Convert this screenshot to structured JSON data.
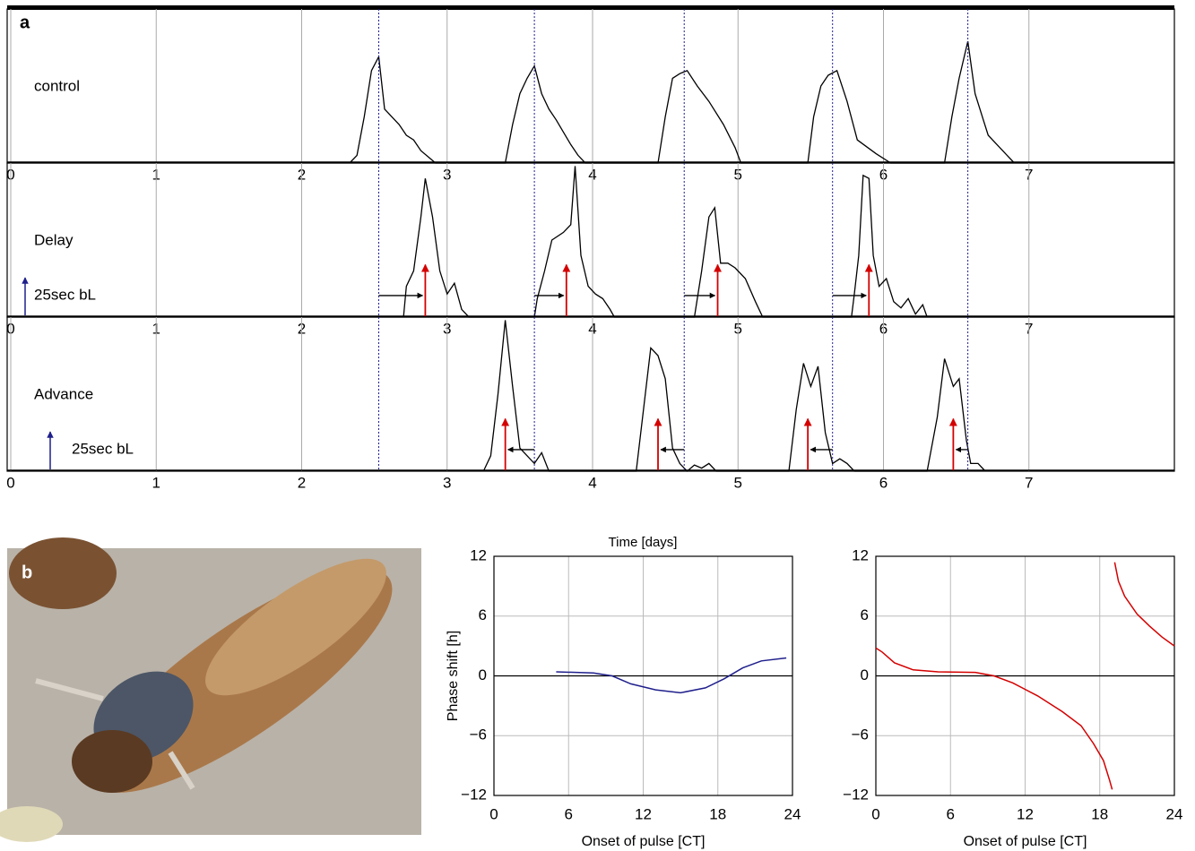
{
  "panel_labels": [
    "a",
    "b"
  ],
  "chart_data": [
    {
      "type": "activity",
      "name": "control",
      "xlim": [
        0,
        8
      ],
      "xticks": [
        0,
        1,
        2,
        3,
        4,
        5,
        6,
        7
      ],
      "ylim": [
        0,
        1
      ],
      "grid": true,
      "vlines": [
        2.53,
        3.6,
        4.63,
        5.65,
        6.58
      ],
      "x": [
        2.33,
        2.38,
        2.43,
        2.48,
        2.53,
        2.57,
        2.62,
        2.67,
        2.72,
        2.77,
        2.82,
        2.87,
        2.92,
        3.4,
        3.45,
        3.5,
        3.55,
        3.6,
        3.65,
        3.7,
        3.75,
        3.8,
        3.85,
        3.9,
        3.95,
        4.45,
        4.5,
        4.55,
        4.6,
        4.65,
        4.72,
        4.8,
        4.9,
        4.98,
        5.02,
        5.48,
        5.52,
        5.57,
        5.62,
        5.68,
        5.75,
        5.82,
        5.95,
        6.05,
        6.42,
        6.47,
        6.52,
        6.58,
        6.63,
        6.68,
        6.72,
        6.78,
        6.85,
        6.9
      ],
      "values": [
        0,
        0.05,
        0.3,
        0.6,
        0.69,
        0.35,
        0.3,
        0.25,
        0.18,
        0.15,
        0.08,
        0.04,
        0,
        0,
        0.25,
        0.45,
        0.55,
        0.63,
        0.45,
        0.35,
        0.28,
        0.2,
        0.12,
        0.05,
        0,
        0,
        0.3,
        0.55,
        0.58,
        0.6,
        0.5,
        0.4,
        0.25,
        0.1,
        0,
        0,
        0.3,
        0.5,
        0.57,
        0.6,
        0.4,
        0.15,
        0.06,
        0,
        0,
        0.3,
        0.55,
        0.79,
        0.45,
        0.3,
        0.18,
        0.12,
        0.05,
        0
      ]
    },
    {
      "type": "activity",
      "name": "Delay",
      "annotation": "25sec bL",
      "xlim": [
        0,
        8
      ],
      "xticks": [
        0,
        1,
        2,
        3,
        4,
        5,
        6,
        7
      ],
      "ylim": [
        0,
        1
      ],
      "grid": true,
      "pulses": [
        2.85,
        3.82,
        4.86,
        5.9
      ],
      "x": [
        2.7,
        2.72,
        2.77,
        2.82,
        2.85,
        2.9,
        2.95,
        3.0,
        3.05,
        3.1,
        3.15,
        3.6,
        3.62,
        3.67,
        3.72,
        3.8,
        3.85,
        3.88,
        3.92,
        3.97,
        4.02,
        4.07,
        4.12,
        4.15,
        4.7,
        4.75,
        4.8,
        4.84,
        4.88,
        4.93,
        4.98,
        5.05,
        5.12,
        5.17,
        5.78,
        5.8,
        5.83,
        5.86,
        5.9,
        5.93,
        5.97,
        6.02,
        6.07,
        6.12,
        6.17,
        6.22,
        6.27,
        6.3
      ],
      "values": [
        0,
        0.2,
        0.3,
        0.65,
        0.9,
        0.65,
        0.3,
        0.15,
        0.22,
        0.05,
        0,
        0,
        0.12,
        0.3,
        0.5,
        0.55,
        0.6,
        0.98,
        0.4,
        0.2,
        0.15,
        0.12,
        0.05,
        0,
        0,
        0.3,
        0.65,
        0.71,
        0.35,
        0.35,
        0.32,
        0.25,
        0.1,
        0,
        0,
        0.15,
        0.4,
        0.92,
        0.9,
        0.4,
        0.2,
        0.25,
        0.1,
        0.06,
        0.12,
        0.02,
        0.08,
        0
      ]
    },
    {
      "type": "activity",
      "name": "Advance",
      "annotation": "25sec bL",
      "xlabel": "Time [days]",
      "xlim": [
        0,
        8
      ],
      "xticks": [
        0,
        1,
        2,
        3,
        4,
        5,
        6,
        7
      ],
      "ylim": [
        0,
        1
      ],
      "grid": true,
      "pulses": [
        3.4,
        4.45,
        5.48,
        6.48
      ],
      "x": [
        3.25,
        3.3,
        3.35,
        3.4,
        3.45,
        3.5,
        3.55,
        3.6,
        3.65,
        3.7,
        4.3,
        4.35,
        4.4,
        4.45,
        4.5,
        4.55,
        4.6,
        4.65,
        4.7,
        4.75,
        4.8,
        4.85,
        5.35,
        5.4,
        5.45,
        5.5,
        5.55,
        5.6,
        5.65,
        5.7,
        5.75,
        5.8,
        6.3,
        6.37,
        6.42,
        6.48,
        6.52,
        6.57,
        6.6,
        6.65,
        6.7
      ],
      "values": [
        0,
        0.1,
        0.5,
        0.98,
        0.55,
        0.15,
        0.1,
        0.05,
        0.12,
        0,
        0,
        0.4,
        0.8,
        0.75,
        0.6,
        0.15,
        0.05,
        0,
        0.04,
        0.02,
        0.05,
        0,
        0,
        0.4,
        0.7,
        0.55,
        0.68,
        0.25,
        0.05,
        0.08,
        0.05,
        0,
        0,
        0.35,
        0.73,
        0.55,
        0.6,
        0.2,
        0.05,
        0.05,
        0
      ]
    },
    {
      "type": "line",
      "xlabel": "Onset of pulse [CT]",
      "ylabel": "Phase shift [h]",
      "color": "#1f1f8c",
      "grid": true,
      "xlim": [
        0,
        24
      ],
      "xticks": [
        0,
        6,
        12,
        18,
        24
      ],
      "ylim": [
        -12,
        12
      ],
      "yticks": [
        {
          "value": -12,
          "label": "−12"
        },
        {
          "value": -6,
          "label": "−6"
        },
        0,
        6,
        12
      ],
      "x": [
        5,
        8,
        9.5,
        11,
        13,
        15,
        17,
        18.5,
        20,
        21.5,
        23.5
      ],
      "values": [
        0.4,
        0.3,
        0,
        -0.8,
        -1.4,
        -1.7,
        -1.2,
        -0.3,
        0.8,
        1.5,
        1.8
      ]
    },
    {
      "type": "line",
      "xlabel": "Onset of pulse [CT]",
      "color": "#d40000",
      "grid": true,
      "xlim": [
        0,
        24
      ],
      "xticks": [
        0,
        6,
        12,
        18,
        24
      ],
      "ylim": [
        -12,
        12
      ],
      "yticks": [
        {
          "value": -12,
          "label": "−12"
        },
        {
          "value": -6,
          "label": "−6"
        },
        0,
        6,
        12
      ],
      "x": [
        0,
        0.5,
        1.5,
        3,
        5,
        8,
        9.5,
        11,
        13,
        15,
        16.5,
        17.5,
        18.3,
        18.8,
        19,
        19.1,
        19.2,
        19.5,
        20,
        21,
        22,
        23,
        24
      ],
      "values": [
        2.8,
        2.4,
        1.3,
        0.6,
        0.4,
        0.35,
        0,
        -0.7,
        -2,
        -3.6,
        -5,
        -6.8,
        -8.5,
        -10.5,
        -11.4,
        null,
        11.4,
        9.5,
        8,
        6.2,
        5,
        3.9,
        3
      ]
    }
  ]
}
